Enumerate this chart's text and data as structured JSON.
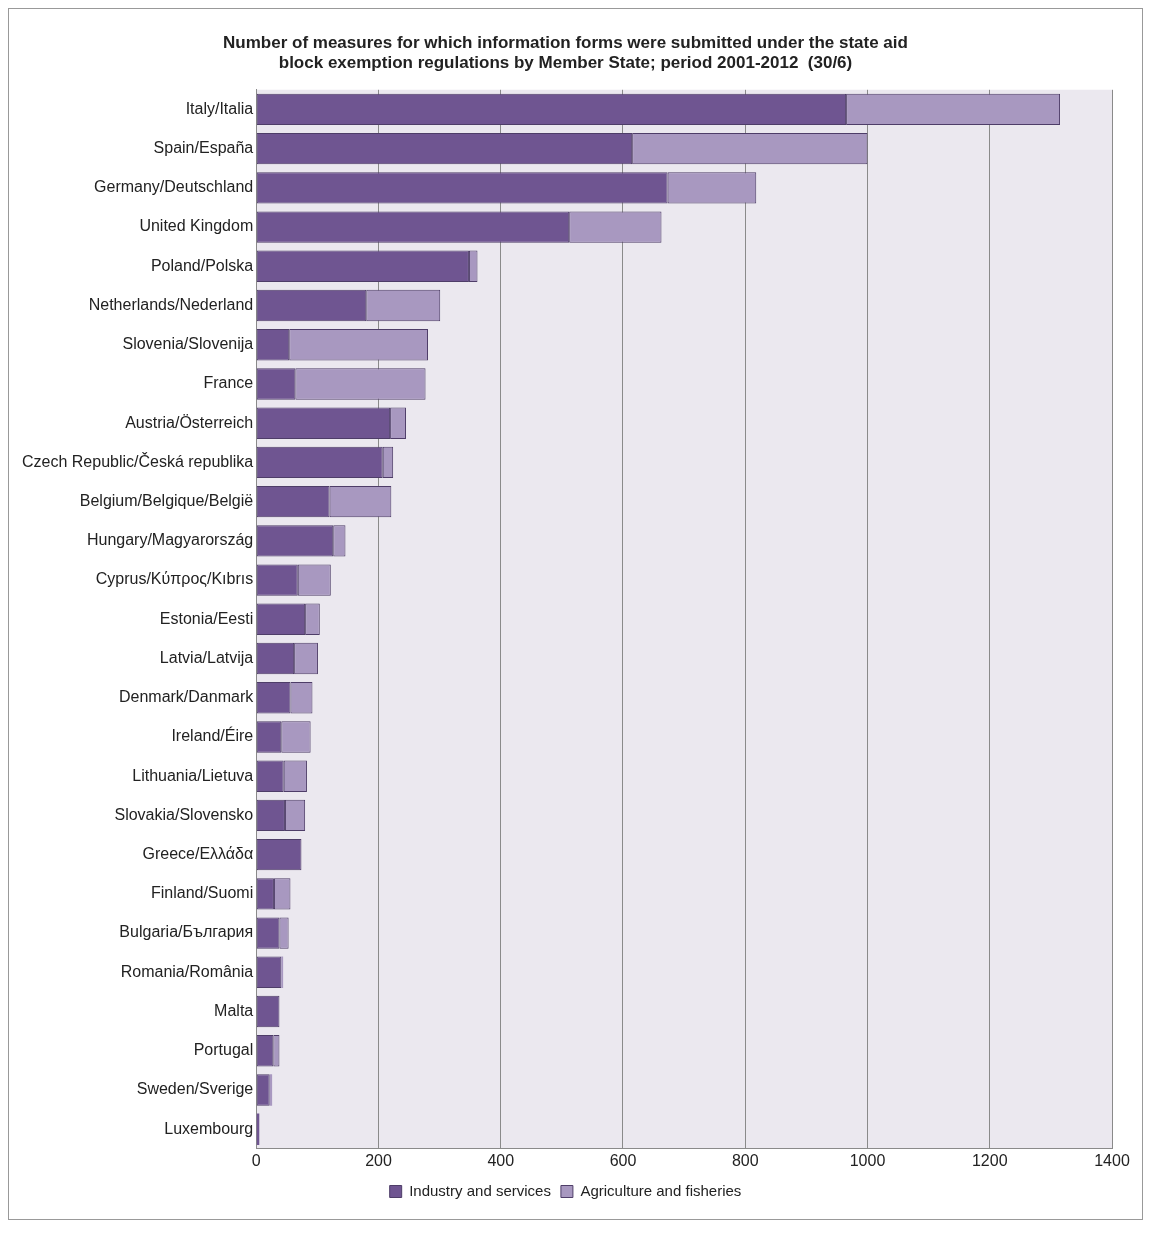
{
  "chart_data": {
    "type": "bar",
    "orientation": "horizontal",
    "stacked": true,
    "title": "Number of measures for which information forms were submitted under the state aid block exemption regulations by Member State; period 2001-2012  (30/6)",
    "categories": [
      "Italy/Italia",
      "Spain/España",
      "Germany/Deutschland",
      "United Kingdom",
      "Poland/Polska",
      "Netherlands/Nederland",
      "Slovenia/Slovenija",
      "France",
      "Austria/Österreich",
      "Czech Republic/Česká republika",
      "Belgium/Belgique/België",
      "Hungary/Magyarország",
      "Cyprus/Κύπρος/Kıbrıs",
      "Estonia/Eesti",
      "Latvia/Latvija",
      "Denmark/Danmark",
      "Ireland/Éire",
      "Lithuania/Lietuva",
      "Slovakia/Slovensko",
      "Greece/Ελλάδα",
      "Finland/Suomi",
      "Bulgaria/България",
      "Romania/România",
      "Malta",
      "Portugal",
      "Sweden/Sverige",
      "Luxembourg"
    ],
    "series": [
      {
        "name": "Industry and services",
        "color": "#6f5591",
        "values": [
          965,
          615,
          673,
          512,
          348,
          180,
          54,
          64,
          219,
          207,
          120,
          126,
          68,
          80,
          62,
          56,
          41,
          45,
          47,
          74,
          29,
          38,
          41,
          38,
          28,
          22,
          5
        ]
      },
      {
        "name": "Agriculture and fisheries",
        "color": "#a898c0",
        "values": [
          350,
          385,
          145,
          151,
          14,
          121,
          227,
          213,
          26,
          17,
          101,
          20,
          54,
          24,
          39,
          36,
          48,
          38,
          33,
          0,
          27,
          15,
          3,
          0,
          10,
          4,
          0
        ]
      }
    ],
    "xlim": [
      0,
      1400
    ],
    "xticks": [
      0,
      200,
      400,
      600,
      800,
      1000,
      1200,
      1400
    ],
    "grid": "x",
    "legend": "bottom"
  }
}
